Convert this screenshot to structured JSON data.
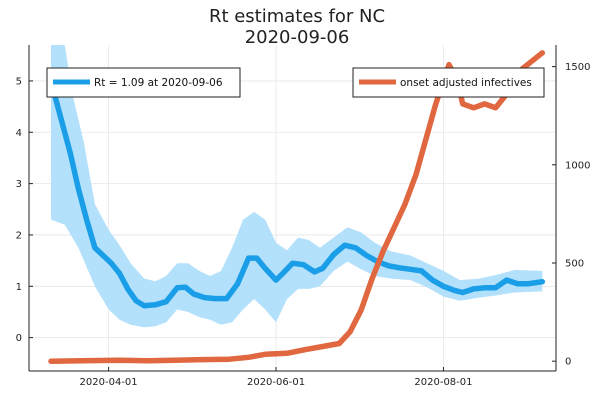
{
  "chart_data": {
    "type": "line",
    "title": "Rt estimates for NC",
    "subtitle": "2020-09-06",
    "xlabel": "",
    "ylabel": "",
    "grid": true,
    "x_ticks": [
      "2020-04-01",
      "2020-06-01",
      "2020-08-01"
    ],
    "y_left": {
      "lim": [
        -0.65,
        5.7
      ],
      "ticks": [
        0,
        1,
        2,
        3,
        4,
        5
      ]
    },
    "y_right": {
      "lim": [
        -50,
        1610
      ],
      "ticks": [
        0,
        500,
        1000,
        1500
      ]
    },
    "legend_left": {
      "placement": "top-left"
    },
    "legend_right": {
      "placement": "top-right"
    },
    "series": [
      {
        "name": "Rt = 1.09 at 2020-09-06",
        "axis": "left",
        "color": "#1a9ee8",
        "band_color": "#b3e0fb",
        "points": [
          [
            "2020-03-11",
            5.0
          ],
          [
            "2020-03-13",
            4.6
          ],
          [
            "2020-03-16",
            4.0
          ],
          [
            "2020-03-18",
            3.6
          ],
          [
            "2020-03-21",
            2.9
          ],
          [
            "2020-03-24",
            2.3
          ],
          [
            "2020-03-27",
            1.75
          ],
          [
            "2020-03-30",
            1.6
          ],
          [
            "2020-04-02",
            1.45
          ],
          [
            "2020-04-05",
            1.25
          ],
          [
            "2020-04-08",
            0.95
          ],
          [
            "2020-04-11",
            0.72
          ],
          [
            "2020-04-14",
            0.62
          ],
          [
            "2020-04-18",
            0.64
          ],
          [
            "2020-04-22",
            0.7
          ],
          [
            "2020-04-26",
            0.97
          ],
          [
            "2020-04-29",
            0.98
          ],
          [
            "2020-05-02",
            0.85
          ],
          [
            "2020-05-06",
            0.78
          ],
          [
            "2020-05-10",
            0.76
          ],
          [
            "2020-05-14",
            0.76
          ],
          [
            "2020-05-18",
            1.05
          ],
          [
            "2020-05-22",
            1.55
          ],
          [
            "2020-05-25",
            1.55
          ],
          [
            "2020-05-28",
            1.35
          ],
          [
            "2020-06-01",
            1.12
          ],
          [
            "2020-06-04",
            1.28
          ],
          [
            "2020-06-07",
            1.45
          ],
          [
            "2020-06-11",
            1.42
          ],
          [
            "2020-06-15",
            1.28
          ],
          [
            "2020-06-18",
            1.35
          ],
          [
            "2020-06-22",
            1.62
          ],
          [
            "2020-06-26",
            1.8
          ],
          [
            "2020-06-30",
            1.75
          ],
          [
            "2020-07-04",
            1.6
          ],
          [
            "2020-07-08",
            1.48
          ],
          [
            "2020-07-12",
            1.4
          ],
          [
            "2020-07-16",
            1.36
          ],
          [
            "2020-07-20",
            1.33
          ],
          [
            "2020-07-24",
            1.3
          ],
          [
            "2020-07-28",
            1.12
          ],
          [
            "2020-08-01",
            1.0
          ],
          [
            "2020-08-05",
            0.92
          ],
          [
            "2020-08-08",
            0.88
          ],
          [
            "2020-08-12",
            0.95
          ],
          [
            "2020-08-16",
            0.97
          ],
          [
            "2020-08-20",
            0.97
          ],
          [
            "2020-08-24",
            1.12
          ],
          [
            "2020-08-28",
            1.05
          ],
          [
            "2020-09-01",
            1.05
          ],
          [
            "2020-09-06",
            1.09
          ]
        ],
        "lower": [
          [
            "2020-03-11",
            2.3
          ],
          [
            "2020-03-16",
            2.2
          ],
          [
            "2020-03-21",
            1.75
          ],
          [
            "2020-03-27",
            1.0
          ],
          [
            "2020-04-01",
            0.55
          ],
          [
            "2020-04-05",
            0.35
          ],
          [
            "2020-04-09",
            0.25
          ],
          [
            "2020-04-14",
            0.2
          ],
          [
            "2020-04-18",
            0.22
          ],
          [
            "2020-04-22",
            0.3
          ],
          [
            "2020-04-26",
            0.55
          ],
          [
            "2020-04-30",
            0.5
          ],
          [
            "2020-05-04",
            0.4
          ],
          [
            "2020-05-08",
            0.35
          ],
          [
            "2020-05-12",
            0.25
          ],
          [
            "2020-05-16",
            0.3
          ],
          [
            "2020-05-20",
            0.55
          ],
          [
            "2020-05-24",
            0.75
          ],
          [
            "2020-05-28",
            0.55
          ],
          [
            "2020-06-01",
            0.3
          ],
          [
            "2020-06-05",
            0.75
          ],
          [
            "2020-06-09",
            0.95
          ],
          [
            "2020-06-13",
            0.95
          ],
          [
            "2020-06-17",
            1.0
          ],
          [
            "2020-06-22",
            1.3
          ],
          [
            "2020-06-27",
            1.48
          ],
          [
            "2020-07-02",
            1.33
          ],
          [
            "2020-07-07",
            1.2
          ],
          [
            "2020-07-13",
            1.15
          ],
          [
            "2020-07-20",
            1.12
          ],
          [
            "2020-07-26",
            0.98
          ],
          [
            "2020-08-01",
            0.8
          ],
          [
            "2020-08-07",
            0.72
          ],
          [
            "2020-08-14",
            0.78
          ],
          [
            "2020-08-20",
            0.82
          ],
          [
            "2020-08-27",
            0.88
          ],
          [
            "2020-09-06",
            0.9
          ]
        ],
        "upper": [
          [
            "2020-03-11",
            5.7
          ],
          [
            "2020-03-13",
            5.7
          ],
          [
            "2020-03-16",
            5.7
          ],
          [
            "2020-03-19",
            4.7
          ],
          [
            "2020-03-23",
            3.8
          ],
          [
            "2020-03-27",
            2.6
          ],
          [
            "2020-04-01",
            2.1
          ],
          [
            "2020-04-05",
            1.8
          ],
          [
            "2020-04-09",
            1.45
          ],
          [
            "2020-04-14",
            1.15
          ],
          [
            "2020-04-18",
            1.1
          ],
          [
            "2020-04-22",
            1.2
          ],
          [
            "2020-04-26",
            1.45
          ],
          [
            "2020-04-30",
            1.45
          ],
          [
            "2020-05-04",
            1.3
          ],
          [
            "2020-05-08",
            1.2
          ],
          [
            "2020-05-12",
            1.3
          ],
          [
            "2020-05-16",
            1.75
          ],
          [
            "2020-05-20",
            2.3
          ],
          [
            "2020-05-24",
            2.45
          ],
          [
            "2020-05-28",
            2.3
          ],
          [
            "2020-06-01",
            1.85
          ],
          [
            "2020-06-05",
            1.7
          ],
          [
            "2020-06-09",
            1.95
          ],
          [
            "2020-06-13",
            1.9
          ],
          [
            "2020-06-17",
            1.75
          ],
          [
            "2020-06-22",
            1.95
          ],
          [
            "2020-06-27",
            2.15
          ],
          [
            "2020-07-02",
            2.05
          ],
          [
            "2020-07-07",
            1.85
          ],
          [
            "2020-07-13",
            1.68
          ],
          [
            "2020-07-20",
            1.6
          ],
          [
            "2020-07-26",
            1.45
          ],
          [
            "2020-08-01",
            1.3
          ],
          [
            "2020-08-07",
            1.12
          ],
          [
            "2020-08-14",
            1.15
          ],
          [
            "2020-08-20",
            1.22
          ],
          [
            "2020-08-27",
            1.32
          ],
          [
            "2020-09-06",
            1.3
          ]
        ]
      },
      {
        "name": "onset adjusted infectives",
        "axis": "right",
        "color": "#e0673f",
        "points": [
          [
            "2020-03-11",
            0
          ],
          [
            "2020-03-25",
            3
          ],
          [
            "2020-04-05",
            5
          ],
          [
            "2020-04-15",
            2
          ],
          [
            "2020-04-25",
            5
          ],
          [
            "2020-05-05",
            8
          ],
          [
            "2020-05-15",
            10
          ],
          [
            "2020-05-22",
            20
          ],
          [
            "2020-05-28",
            35
          ],
          [
            "2020-06-05",
            40
          ],
          [
            "2020-06-12",
            60
          ],
          [
            "2020-06-18",
            75
          ],
          [
            "2020-06-24",
            90
          ],
          [
            "2020-06-28",
            150
          ],
          [
            "2020-07-02",
            260
          ],
          [
            "2020-07-06",
            420
          ],
          [
            "2020-07-10",
            560
          ],
          [
            "2020-07-14",
            680
          ],
          [
            "2020-07-18",
            800
          ],
          [
            "2020-07-22",
            950
          ],
          [
            "2020-07-26",
            1150
          ],
          [
            "2020-07-29",
            1300
          ],
          [
            "2020-08-01",
            1430
          ],
          [
            "2020-08-03",
            1510
          ],
          [
            "2020-08-06",
            1430
          ],
          [
            "2020-08-08",
            1310
          ],
          [
            "2020-08-12",
            1290
          ],
          [
            "2020-08-16",
            1310
          ],
          [
            "2020-08-20",
            1290
          ],
          [
            "2020-08-24",
            1360
          ],
          [
            "2020-08-28",
            1470
          ],
          [
            "2020-09-06",
            1570
          ]
        ]
      }
    ]
  }
}
